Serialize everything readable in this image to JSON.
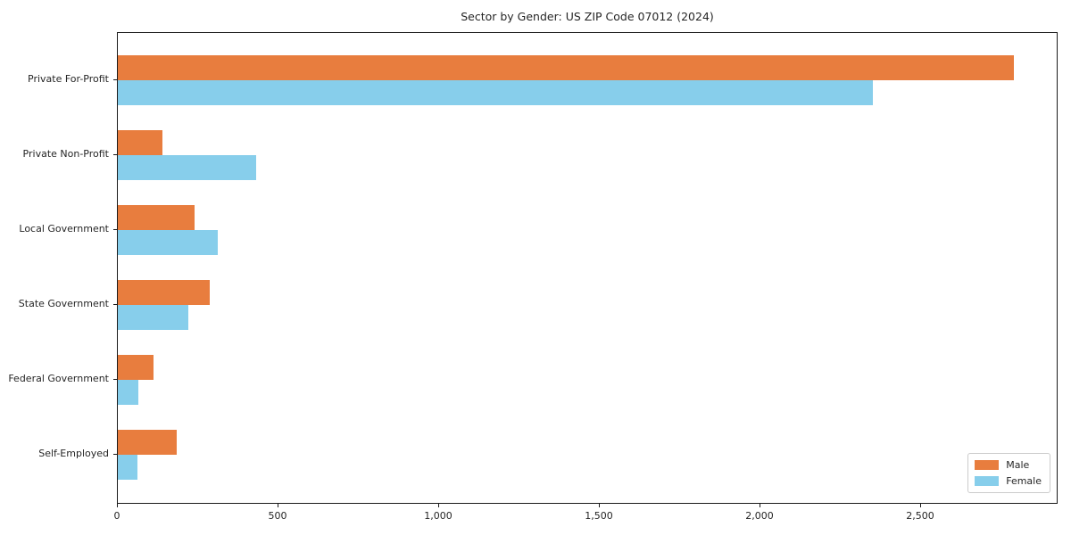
{
  "title": "Sector by Gender: US ZIP Code 07012 (2024)",
  "chart_data": {
    "type": "bar",
    "orientation": "horizontal",
    "title": "Sector by Gender: US ZIP Code 07012 (2024)",
    "categories": [
      "Private For-Profit",
      "Private Non-Profit",
      "Local Government",
      "State Government",
      "Federal Government",
      "Self-Employed"
    ],
    "series": [
      {
        "name": "Male",
        "color": "#e87d3e",
        "values": [
          2790,
          140,
          240,
          285,
          110,
          182
        ]
      },
      {
        "name": "Female",
        "color": "#87ceeb",
        "values": [
          2350,
          430,
          310,
          220,
          65,
          60
        ]
      }
    ],
    "xlabel": "",
    "ylabel": "",
    "xlim": [
      0,
      2928
    ],
    "xticks": [
      0,
      500,
      1000,
      1500,
      2000,
      2500
    ],
    "xtick_labels": [
      "0",
      "500",
      "1,000",
      "1,500",
      "2,000",
      "2,500"
    ],
    "legend_position": "lower right",
    "grid": false,
    "background_color": "#ffffff",
    "axis_color": "#1a1a1a"
  }
}
